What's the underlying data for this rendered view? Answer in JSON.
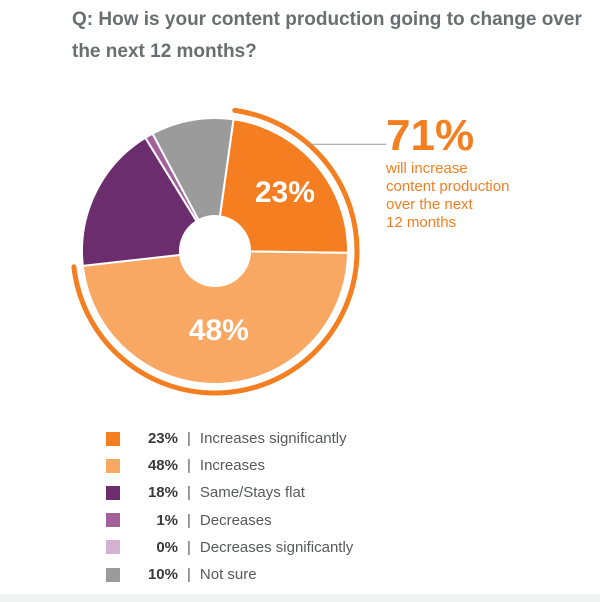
{
  "title": "Q: How is your content production going to change over the next 12 months?",
  "callout": {
    "value": "71%",
    "lines": [
      "will increase",
      "content production",
      "over the next",
      "12 months"
    ],
    "color": "#f47e20"
  },
  "chart_data": {
    "type": "pie",
    "title": "Q: How is your content production going to change over the next 12 months?",
    "donut": true,
    "categories": [
      "Increases significantly",
      "Increases",
      "Same/Stays flat",
      "Decreases",
      "Decreases significantly",
      "Not sure"
    ],
    "values": [
      23,
      48,
      18,
      1,
      0,
      10
    ],
    "labels": [
      "23%",
      "48%",
      "18%",
      "1%",
      "0%",
      "10%"
    ],
    "slice_labels_shown": [
      "23%",
      "48%"
    ],
    "colors": [
      "#f47e20",
      "#f9a864",
      "#6b2d6e",
      "#a2609c",
      "#d4b0d1",
      "#9b9b9b"
    ],
    "legend_position": "bottom-left"
  }
}
